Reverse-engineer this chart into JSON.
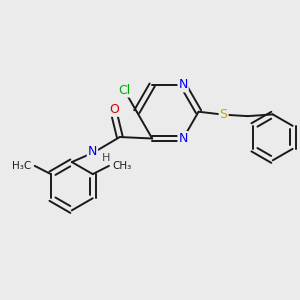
{
  "background_color": "#ebebeb",
  "bond_color": "#1a1a1a",
  "atom_colors": {
    "N": "#0000ee",
    "O": "#dd0000",
    "S": "#bbaa00",
    "Cl": "#00aa00",
    "C": "#1a1a1a",
    "H": "#444444"
  },
  "figsize": [
    3.0,
    3.0
  ],
  "dpi": 100
}
